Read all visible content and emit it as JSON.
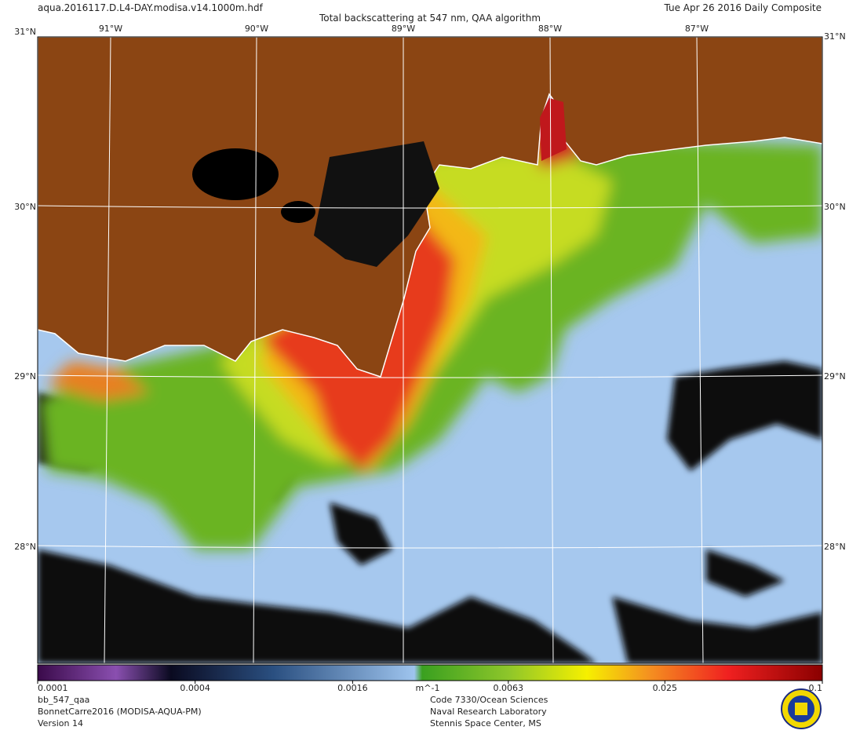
{
  "header": {
    "filename": "aqua.2016117.D.L4-DAY.modisa.v14.1000m.hdf",
    "title": "Total backscattering at 547 nm, QAA algorithm",
    "date": "Tue Apr 26 2016 Daily Composite"
  },
  "map": {
    "lon_labels": [
      "91°W",
      "90°W",
      "89°W",
      "88°W",
      "87°W"
    ],
    "lat_labels": [
      "31°N",
      "30°N",
      "29°N",
      "28°N"
    ]
  },
  "colorbar": {
    "scale": "log",
    "range": [
      0.0001,
      0.1
    ],
    "ticks": [
      0.0001,
      0.0004,
      0.0016,
      0.0063,
      0.025,
      0.1
    ],
    "unit": "m^-1"
  },
  "footer": {
    "left": [
      "bb_547_qaa",
      "BonnetCarre2016 (MODISA-AQUA-PM)",
      "Version 14"
    ],
    "center": [
      "Code 7330/Ocean Sciences",
      "Naval Research Laboratory",
      "Stennis Space Center, MS"
    ]
  }
}
